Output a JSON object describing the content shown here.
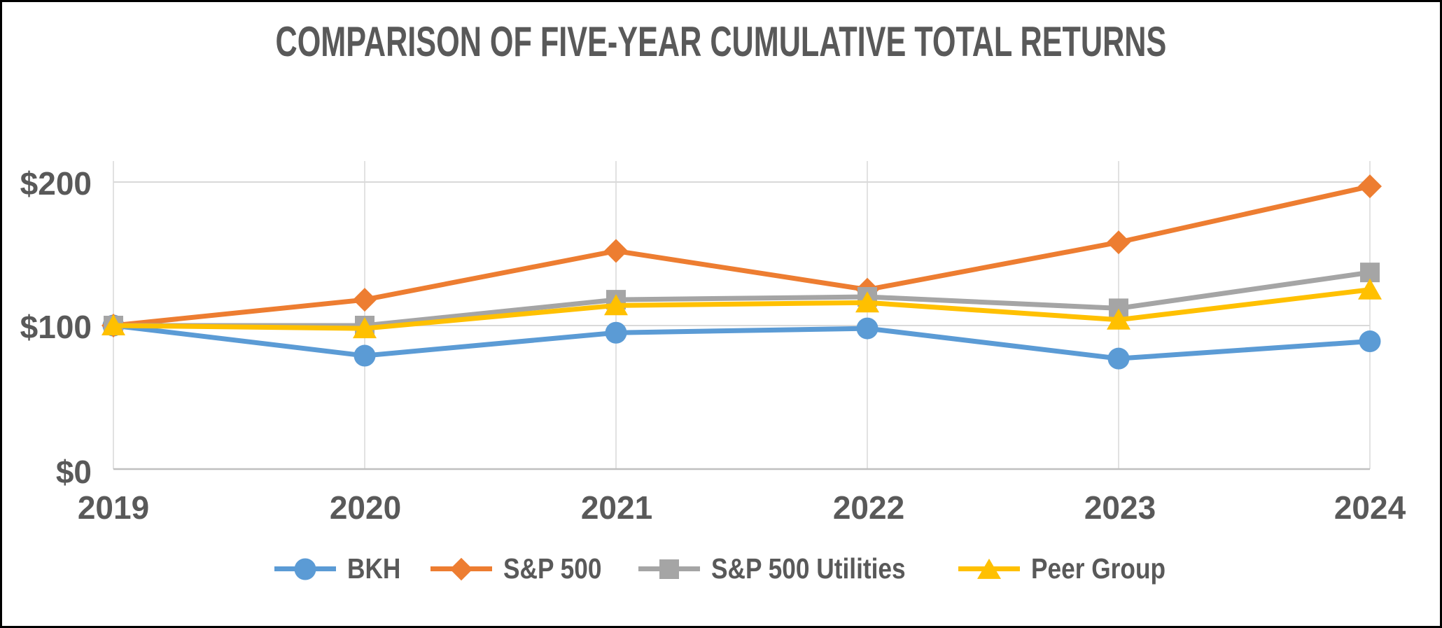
{
  "chart_data": {
    "type": "line",
    "title": "COMPARISON OF FIVE-YEAR CUMULATIVE TOTAL RETURNS",
    "categories": [
      "2019",
      "2020",
      "2021",
      "2022",
      "2023",
      "2024"
    ],
    "series": [
      {
        "name": "BKH",
        "marker": "circle",
        "color": "#5B9BD5",
        "values": [
          100,
          79,
          95,
          98,
          77,
          89
        ]
      },
      {
        "name": "S&P 500",
        "marker": "diamond",
        "color": "#ED7D31",
        "values": [
          100,
          118,
          152,
          125,
          158,
          197
        ]
      },
      {
        "name": "S&P 500 Utilities",
        "marker": "square",
        "color": "#A5A5A5",
        "values": [
          100,
          100,
          118,
          120,
          112,
          137
        ]
      },
      {
        "name": "Peer Group",
        "marker": "triangle",
        "color": "#FFC000",
        "values": [
          100,
          98,
          114,
          116,
          104,
          125
        ]
      }
    ],
    "y_ticks": [
      {
        "value": 0,
        "label": "$0"
      },
      {
        "value": 100,
        "label": "$100"
      },
      {
        "value": 200,
        "label": "$200"
      }
    ],
    "ylim": [
      0,
      215
    ],
    "xlabel": "",
    "ylabel": "",
    "grid": true,
    "legend_position": "bottom",
    "currency_prefix": "$"
  },
  "colors": {
    "text": "#595959",
    "major_gridline": "#D9D9D9",
    "vertical_gridline": "#E2E2E2",
    "axis_line": "#BFBFBF",
    "frame_border": "#000000",
    "background": "#FFFFFF"
  }
}
